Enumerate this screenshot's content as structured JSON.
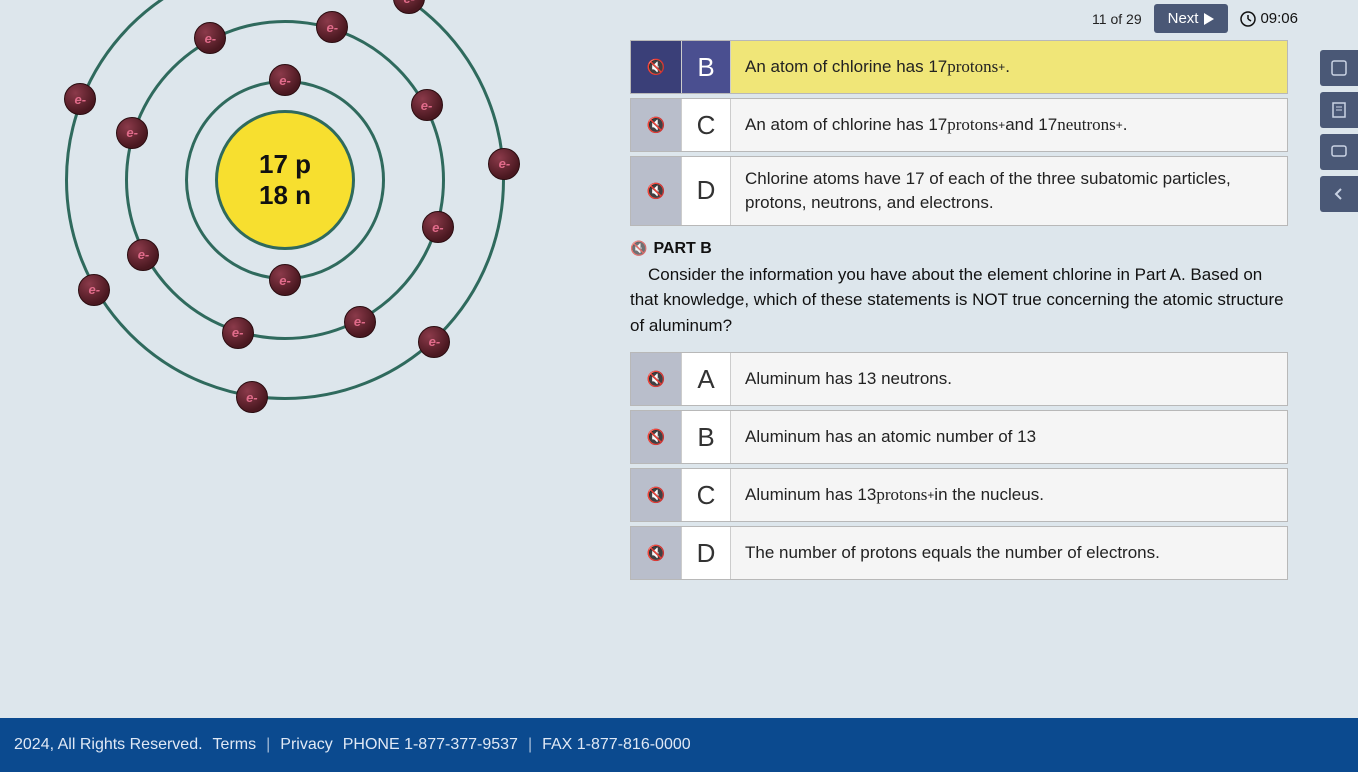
{
  "topbar": {
    "counter": "11 of 29",
    "next_label": "Next",
    "timer": "09:06"
  },
  "atom": {
    "nucleus_protons": "17 p",
    "nucleus_neutrons": "18 n",
    "electron_label": "e-",
    "shell_color": "#2f6a5d",
    "nucleus_color": "#f7df2f",
    "electron_color_start": "#8b3a4a",
    "electron_color_end": "#4a1820",
    "shells": [
      {
        "radius": 100,
        "electrons": 2
      },
      {
        "radius": 160,
        "electrons": 8
      },
      {
        "radius": 220,
        "electrons": 7
      }
    ]
  },
  "partA": {
    "answers": [
      {
        "letter": "B",
        "text_html": "An atom of chlorine has 17 <span class='serif'>protons</span><sup>+</sup>.",
        "selected": true
      },
      {
        "letter": "C",
        "text_html": "An atom of chlorine has 17 <span class='serif'>protons</span><sup>+</sup> and 17 <span class='serif'>neutrons</span><sup>+</sup>.",
        "selected": false
      },
      {
        "letter": "D",
        "text_html": "Chlorine atoms have 17 of each of the three subatomic particles, protons, neutrons, and electrons.",
        "selected": false
      }
    ]
  },
  "partB": {
    "header": "PART B",
    "question": "Consider the information you have about the element chlorine in Part A. Based on that knowledge, which of these statements is NOT true concerning the atomic structure of aluminum?",
    "answers": [
      {
        "letter": "A",
        "text_html": "Aluminum has 13 neutrons."
      },
      {
        "letter": "B",
        "text_html": "Aluminum has an atomic number of 13"
      },
      {
        "letter": "C",
        "text_html": "Aluminum has 13 <span class='serif'>protons</span><sup>+</sup> in the nucleus."
      },
      {
        "letter": "D",
        "text_html": "The number of protons equals the number of electrons."
      }
    ]
  },
  "footer": {
    "copyright": "2024, All Rights Reserved.",
    "terms": "Terms",
    "privacy": "Privacy",
    "phone": "PHONE 1-877-377-9537",
    "fax": "FAX 1-877-816-0000"
  }
}
